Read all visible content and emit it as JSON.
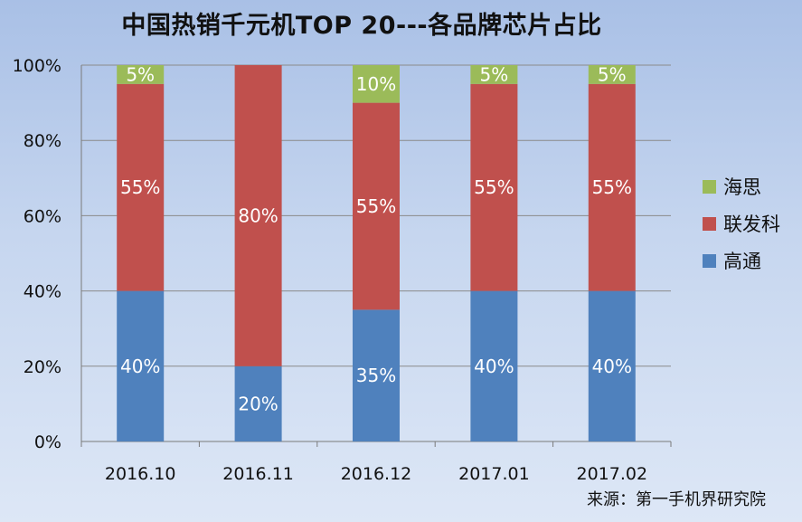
{
  "source_note": "来源：第一手机界研究院",
  "chart_data": {
    "type": "bar",
    "stacked": true,
    "percent_stacked": true,
    "title": "中国热销千元机TOP 20---各品牌芯片占比",
    "xlabel": "",
    "ylabel": "",
    "categories": [
      "2016.10",
      "2016.11",
      "2016.12",
      "2017.01",
      "2017.02"
    ],
    "series": [
      {
        "name": "高通",
        "color": "#4f81bd",
        "values": [
          40,
          20,
          35,
          40,
          40
        ],
        "labels": [
          "40%",
          "20%",
          "35%",
          "40%",
          "40%"
        ]
      },
      {
        "name": "联发科",
        "color": "#c0504d",
        "values": [
          55,
          80,
          55,
          55,
          55
        ],
        "labels": [
          "55%",
          "80%",
          "55%",
          "55%",
          "55%"
        ]
      },
      {
        "name": "海思",
        "color": "#9bbb59",
        "values": [
          5,
          0,
          10,
          5,
          5
        ],
        "labels": [
          "5%",
          "",
          "10%",
          "5%",
          "5%"
        ]
      }
    ],
    "ylim": [
      0,
      100
    ],
    "yticks": [
      0,
      20,
      40,
      60,
      80,
      100
    ],
    "ytick_labels": [
      "0%",
      "20%",
      "40%",
      "60%",
      "80%",
      "100%"
    ],
    "grid": true,
    "legend_position": "right",
    "legend_order": [
      "海思",
      "联发科",
      "高通"
    ]
  }
}
